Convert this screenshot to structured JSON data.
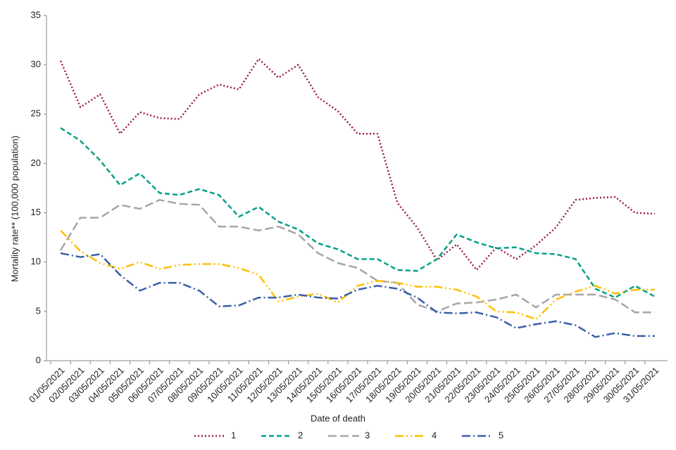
{
  "chart_data": {
    "type": "line",
    "x_label": "Date of death",
    "y_label": "Mortality rate** (100,000 population)",
    "categories": [
      "01/05/2021",
      "02/05/2021",
      "03/05/2021",
      "04/05/2021",
      "05/05/2021",
      "06/05/2021",
      "07/05/2021",
      "08/05/2021",
      "09/05/2021",
      "10/05/2021",
      "11/05/2021",
      "12/05/2021",
      "13/05/2021",
      "14/05/2021",
      "15/05/2021",
      "16/05/2021",
      "17/05/2021",
      "18/05/2021",
      "19/05/2021",
      "20/05/2021",
      "21/05/2021",
      "22/05/2021",
      "23/05/2021",
      "24/05/2021",
      "25/05/2021",
      "26/05/2021",
      "27/05/2021",
      "28/05/2021",
      "29/05/2021",
      "30/05/2021",
      "31/05/2021"
    ],
    "series": [
      {
        "name": "1",
        "color": "#9b1b4a",
        "dash": "dotted",
        "values": [
          30.4,
          25.7,
          27.0,
          23.0,
          25.2,
          24.6,
          24.5,
          27.0,
          28.0,
          27.5,
          30.6,
          28.7,
          30.0,
          26.7,
          25.3,
          23.0,
          23.0,
          16.0,
          13.5,
          10.2,
          11.8,
          9.2,
          11.5,
          10.3,
          11.7,
          13.5,
          16.3,
          16.5,
          16.6,
          15.0,
          14.9
        ]
      },
      {
        "name": "2",
        "color": "#00a187",
        "dash": "dashed",
        "values": [
          23.6,
          22.3,
          20.3,
          17.8,
          19.0,
          17.0,
          16.8,
          17.4,
          16.8,
          14.6,
          15.6,
          14.1,
          13.3,
          11.9,
          11.3,
          10.3,
          10.3,
          9.2,
          9.1,
          10.3,
          12.8,
          12.0,
          11.4,
          11.5,
          10.9,
          10.8,
          10.3,
          7.3,
          6.4,
          7.6,
          6.5
        ]
      },
      {
        "name": "3",
        "color": "#a6a6a6",
        "dash": "long-dash",
        "values": [
          11.2,
          14.5,
          14.5,
          15.8,
          15.4,
          16.3,
          15.9,
          15.8,
          13.6,
          13.6,
          13.2,
          13.6,
          12.8,
          10.9,
          9.9,
          9.4,
          8.1,
          7.9,
          5.7,
          5.0,
          5.8,
          5.9,
          6.2,
          6.7,
          5.4,
          6.7,
          6.7,
          6.7,
          6.2,
          4.9,
          4.9
        ]
      },
      {
        "name": "4",
        "color": "#ffbf00",
        "dash": "dash-dot-dot",
        "values": [
          13.2,
          11.1,
          9.9,
          9.3,
          10.0,
          9.3,
          9.7,
          9.8,
          9.8,
          9.4,
          8.7,
          6.0,
          6.5,
          6.8,
          5.9,
          7.6,
          8.1,
          7.9,
          7.5,
          7.5,
          7.2,
          6.5,
          5.0,
          4.9,
          4.2,
          6.2,
          7.0,
          7.6,
          6.8,
          7.2,
          7.2
        ]
      },
      {
        "name": "5",
        "color": "#3a5ea8",
        "dash": "dash-dot",
        "values": [
          10.9,
          10.5,
          10.8,
          8.7,
          7.1,
          7.9,
          7.9,
          7.1,
          5.5,
          5.6,
          6.4,
          6.4,
          6.7,
          6.4,
          6.3,
          7.2,
          7.6,
          7.3,
          6.4,
          4.9,
          4.8,
          4.9,
          4.4,
          3.3,
          3.7,
          4.0,
          3.6,
          2.4,
          2.8,
          2.5,
          2.5
        ]
      }
    ],
    "ylim": [
      0,
      35
    ],
    "yticks": [
      0,
      5,
      10,
      15,
      20,
      25,
      30,
      35
    ],
    "grid": false,
    "legend": "bottom"
  }
}
